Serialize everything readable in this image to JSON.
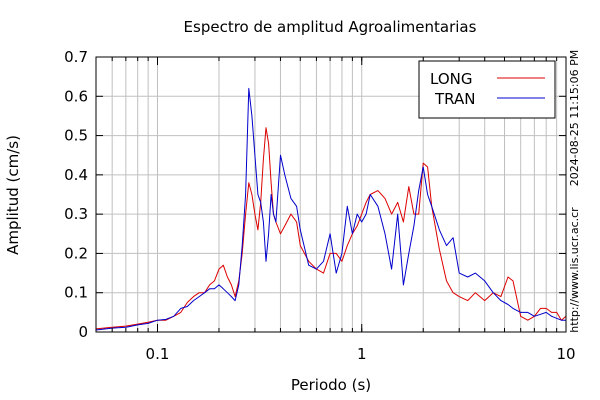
{
  "chart_data": {
    "type": "line",
    "title": "Espectro de amplitud Agroalimentarias",
    "xlabel": "Periodo (s)",
    "ylabel": "Amplitud (cm/s)",
    "x_scale": "log",
    "xlim": [
      0.05,
      10
    ],
    "ylim": [
      0,
      0.7
    ],
    "grid": true,
    "legend_position": "top-right",
    "x_ticks": [
      {
        "value": 0.1,
        "label": "0.1"
      },
      {
        "value": 1,
        "label": "1"
      },
      {
        "value": 10,
        "label": "10"
      }
    ],
    "y_ticks": [
      {
        "value": 0,
        "label": "0"
      },
      {
        "value": 0.1,
        "label": "0.1"
      },
      {
        "value": 0.2,
        "label": "0.2"
      },
      {
        "value": 0.3,
        "label": "0.3"
      },
      {
        "value": 0.4,
        "label": "0.4"
      },
      {
        "value": 0.5,
        "label": "0.5"
      },
      {
        "value": 0.6,
        "label": "0.6"
      },
      {
        "value": 0.7,
        "label": "0.7"
      }
    ],
    "side_text_right": "2024-08-25 11:15:06 PM",
    "side_text_bottom": "http://www.lis.ucr.ac.cr",
    "series": [
      {
        "name": "LONG",
        "color": "#dd0000",
        "x": [
          0.05,
          0.06,
          0.07,
          0.08,
          0.09,
          0.1,
          0.11,
          0.12,
          0.13,
          0.14,
          0.15,
          0.16,
          0.17,
          0.18,
          0.19,
          0.2,
          0.21,
          0.22,
          0.23,
          0.24,
          0.25,
          0.26,
          0.27,
          0.28,
          0.29,
          0.3,
          0.31,
          0.32,
          0.33,
          0.34,
          0.35,
          0.36,
          0.37,
          0.38,
          0.4,
          0.42,
          0.45,
          0.48,
          0.5,
          0.55,
          0.6,
          0.65,
          0.7,
          0.75,
          0.8,
          0.85,
          0.9,
          0.95,
          1.0,
          1.05,
          1.1,
          1.2,
          1.3,
          1.4,
          1.5,
          1.6,
          1.7,
          1.8,
          1.9,
          2.0,
          2.1,
          2.2,
          2.4,
          2.6,
          2.8,
          3.0,
          3.3,
          3.6,
          4.0,
          4.4,
          4.8,
          5.2,
          5.5,
          6.0,
          6.5,
          7.0,
          7.5,
          8.0,
          8.5,
          9.0,
          9.5,
          10.0
        ],
        "y": [
          0.008,
          0.012,
          0.015,
          0.02,
          0.025,
          0.03,
          0.03,
          0.04,
          0.05,
          0.075,
          0.09,
          0.1,
          0.1,
          0.12,
          0.13,
          0.16,
          0.17,
          0.14,
          0.12,
          0.09,
          0.13,
          0.2,
          0.3,
          0.38,
          0.35,
          0.3,
          0.26,
          0.33,
          0.44,
          0.52,
          0.48,
          0.38,
          0.3,
          0.28,
          0.25,
          0.27,
          0.3,
          0.28,
          0.22,
          0.18,
          0.16,
          0.15,
          0.2,
          0.2,
          0.18,
          0.22,
          0.25,
          0.27,
          0.3,
          0.33,
          0.35,
          0.36,
          0.34,
          0.3,
          0.33,
          0.28,
          0.37,
          0.3,
          0.3,
          0.43,
          0.42,
          0.32,
          0.21,
          0.13,
          0.1,
          0.09,
          0.08,
          0.1,
          0.08,
          0.1,
          0.09,
          0.14,
          0.13,
          0.04,
          0.03,
          0.04,
          0.06,
          0.06,
          0.05,
          0.05,
          0.03,
          0.04
        ]
      },
      {
        "name": "TRAN",
        "color": "#0000cc",
        "x": [
          0.05,
          0.06,
          0.07,
          0.08,
          0.09,
          0.1,
          0.11,
          0.12,
          0.13,
          0.14,
          0.15,
          0.16,
          0.17,
          0.18,
          0.19,
          0.2,
          0.21,
          0.22,
          0.23,
          0.24,
          0.25,
          0.26,
          0.27,
          0.28,
          0.29,
          0.3,
          0.31,
          0.32,
          0.33,
          0.34,
          0.35,
          0.36,
          0.37,
          0.38,
          0.4,
          0.42,
          0.45,
          0.48,
          0.5,
          0.55,
          0.6,
          0.65,
          0.7,
          0.75,
          0.8,
          0.85,
          0.9,
          0.95,
          1.0,
          1.05,
          1.1,
          1.2,
          1.3,
          1.4,
          1.5,
          1.6,
          1.7,
          1.8,
          1.9,
          2.0,
          2.1,
          2.2,
          2.4,
          2.6,
          2.8,
          3.0,
          3.3,
          3.6,
          4.0,
          4.4,
          4.8,
          5.2,
          5.5,
          6.0,
          6.5,
          7.0,
          7.5,
          8.0,
          8.5,
          9.0,
          9.5,
          10.0
        ],
        "y": [
          0.005,
          0.01,
          0.012,
          0.018,
          0.022,
          0.03,
          0.032,
          0.04,
          0.06,
          0.065,
          0.08,
          0.09,
          0.1,
          0.11,
          0.11,
          0.12,
          0.11,
          0.1,
          0.09,
          0.08,
          0.12,
          0.22,
          0.35,
          0.62,
          0.55,
          0.45,
          0.35,
          0.33,
          0.28,
          0.18,
          0.25,
          0.35,
          0.3,
          0.28,
          0.45,
          0.4,
          0.34,
          0.32,
          0.26,
          0.17,
          0.16,
          0.18,
          0.25,
          0.15,
          0.2,
          0.32,
          0.25,
          0.3,
          0.28,
          0.3,
          0.35,
          0.32,
          0.25,
          0.16,
          0.3,
          0.12,
          0.2,
          0.27,
          0.36,
          0.42,
          0.35,
          0.32,
          0.26,
          0.22,
          0.24,
          0.15,
          0.14,
          0.15,
          0.13,
          0.1,
          0.08,
          0.07,
          0.06,
          0.05,
          0.05,
          0.04,
          0.045,
          0.05,
          0.04,
          0.035,
          0.03,
          0.03
        ]
      }
    ]
  }
}
